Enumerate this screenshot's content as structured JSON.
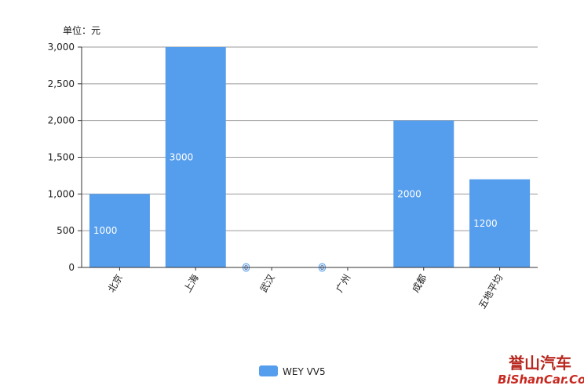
{
  "chart_data": {
    "type": "bar",
    "unit_label": "单位：元",
    "categories": [
      "北京",
      "上海",
      "武汉",
      "广州",
      "成都",
      "五地平均"
    ],
    "series": [
      {
        "name": "WEY VV5",
        "values": [
          1000,
          3000,
          0,
          0,
          2000,
          1200
        ],
        "color": "#559ded"
      }
    ],
    "data_labels": [
      "1000",
      "3000",
      "0",
      "0",
      "2000",
      "1200"
    ],
    "y_ticks": [
      "0",
      "500",
      "1,000",
      "1,500",
      "2,000",
      "2,500",
      "3,000"
    ],
    "ylim": [
      0,
      3000
    ],
    "grid": true,
    "legend_position": "bottom-center"
  },
  "watermark": {
    "line1": "誉山汽车",
    "line2": "BiShanCar.Com"
  }
}
